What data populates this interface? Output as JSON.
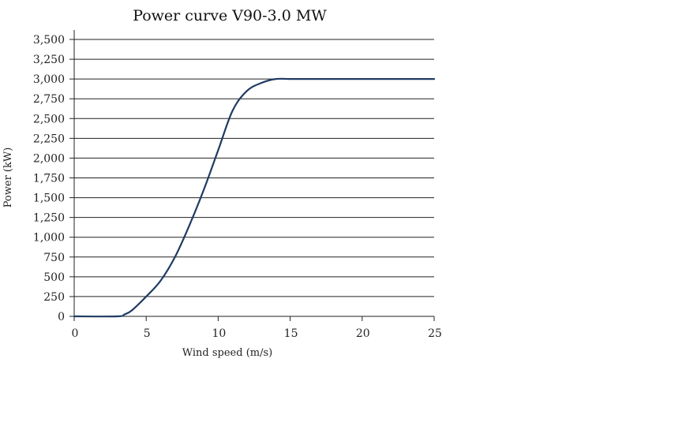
{
  "chart_data": {
    "type": "line",
    "title": "Power curve V90-3.0 MW",
    "xlabel": "Wind speed (m/s)",
    "ylabel": "Power (kW)",
    "xlim": [
      0,
      25
    ],
    "ylim": [
      0,
      3500
    ],
    "xticks": [
      0,
      5,
      10,
      15,
      20,
      25
    ],
    "xtick_labels": [
      "0",
      "5",
      "10",
      "15",
      "20",
      "25"
    ],
    "yticks": [
      0,
      250,
      500,
      750,
      1000,
      1250,
      1500,
      1750,
      2000,
      2250,
      2500,
      2750,
      3000,
      3250,
      3500
    ],
    "ytick_labels": [
      "0",
      "250",
      "500",
      "750",
      "1,000",
      "1,250",
      "1,500",
      "1,750",
      "2,000",
      "2,250",
      "2,500",
      "2,750",
      "3,000",
      "3,250",
      "3,500"
    ],
    "grid": "horizontal",
    "series": [
      {
        "color": "#1f3b63",
        "x": [
          0,
          3,
          3.5,
          4,
          5,
          6,
          7,
          8,
          9,
          10,
          11,
          12,
          13,
          14,
          15,
          16,
          20,
          25
        ],
        "y": [
          0,
          0,
          25,
          75,
          250,
          450,
          750,
          1150,
          1600,
          2100,
          2600,
          2850,
          2950,
          3000,
          3000,
          3000,
          3000,
          3000
        ]
      }
    ]
  }
}
